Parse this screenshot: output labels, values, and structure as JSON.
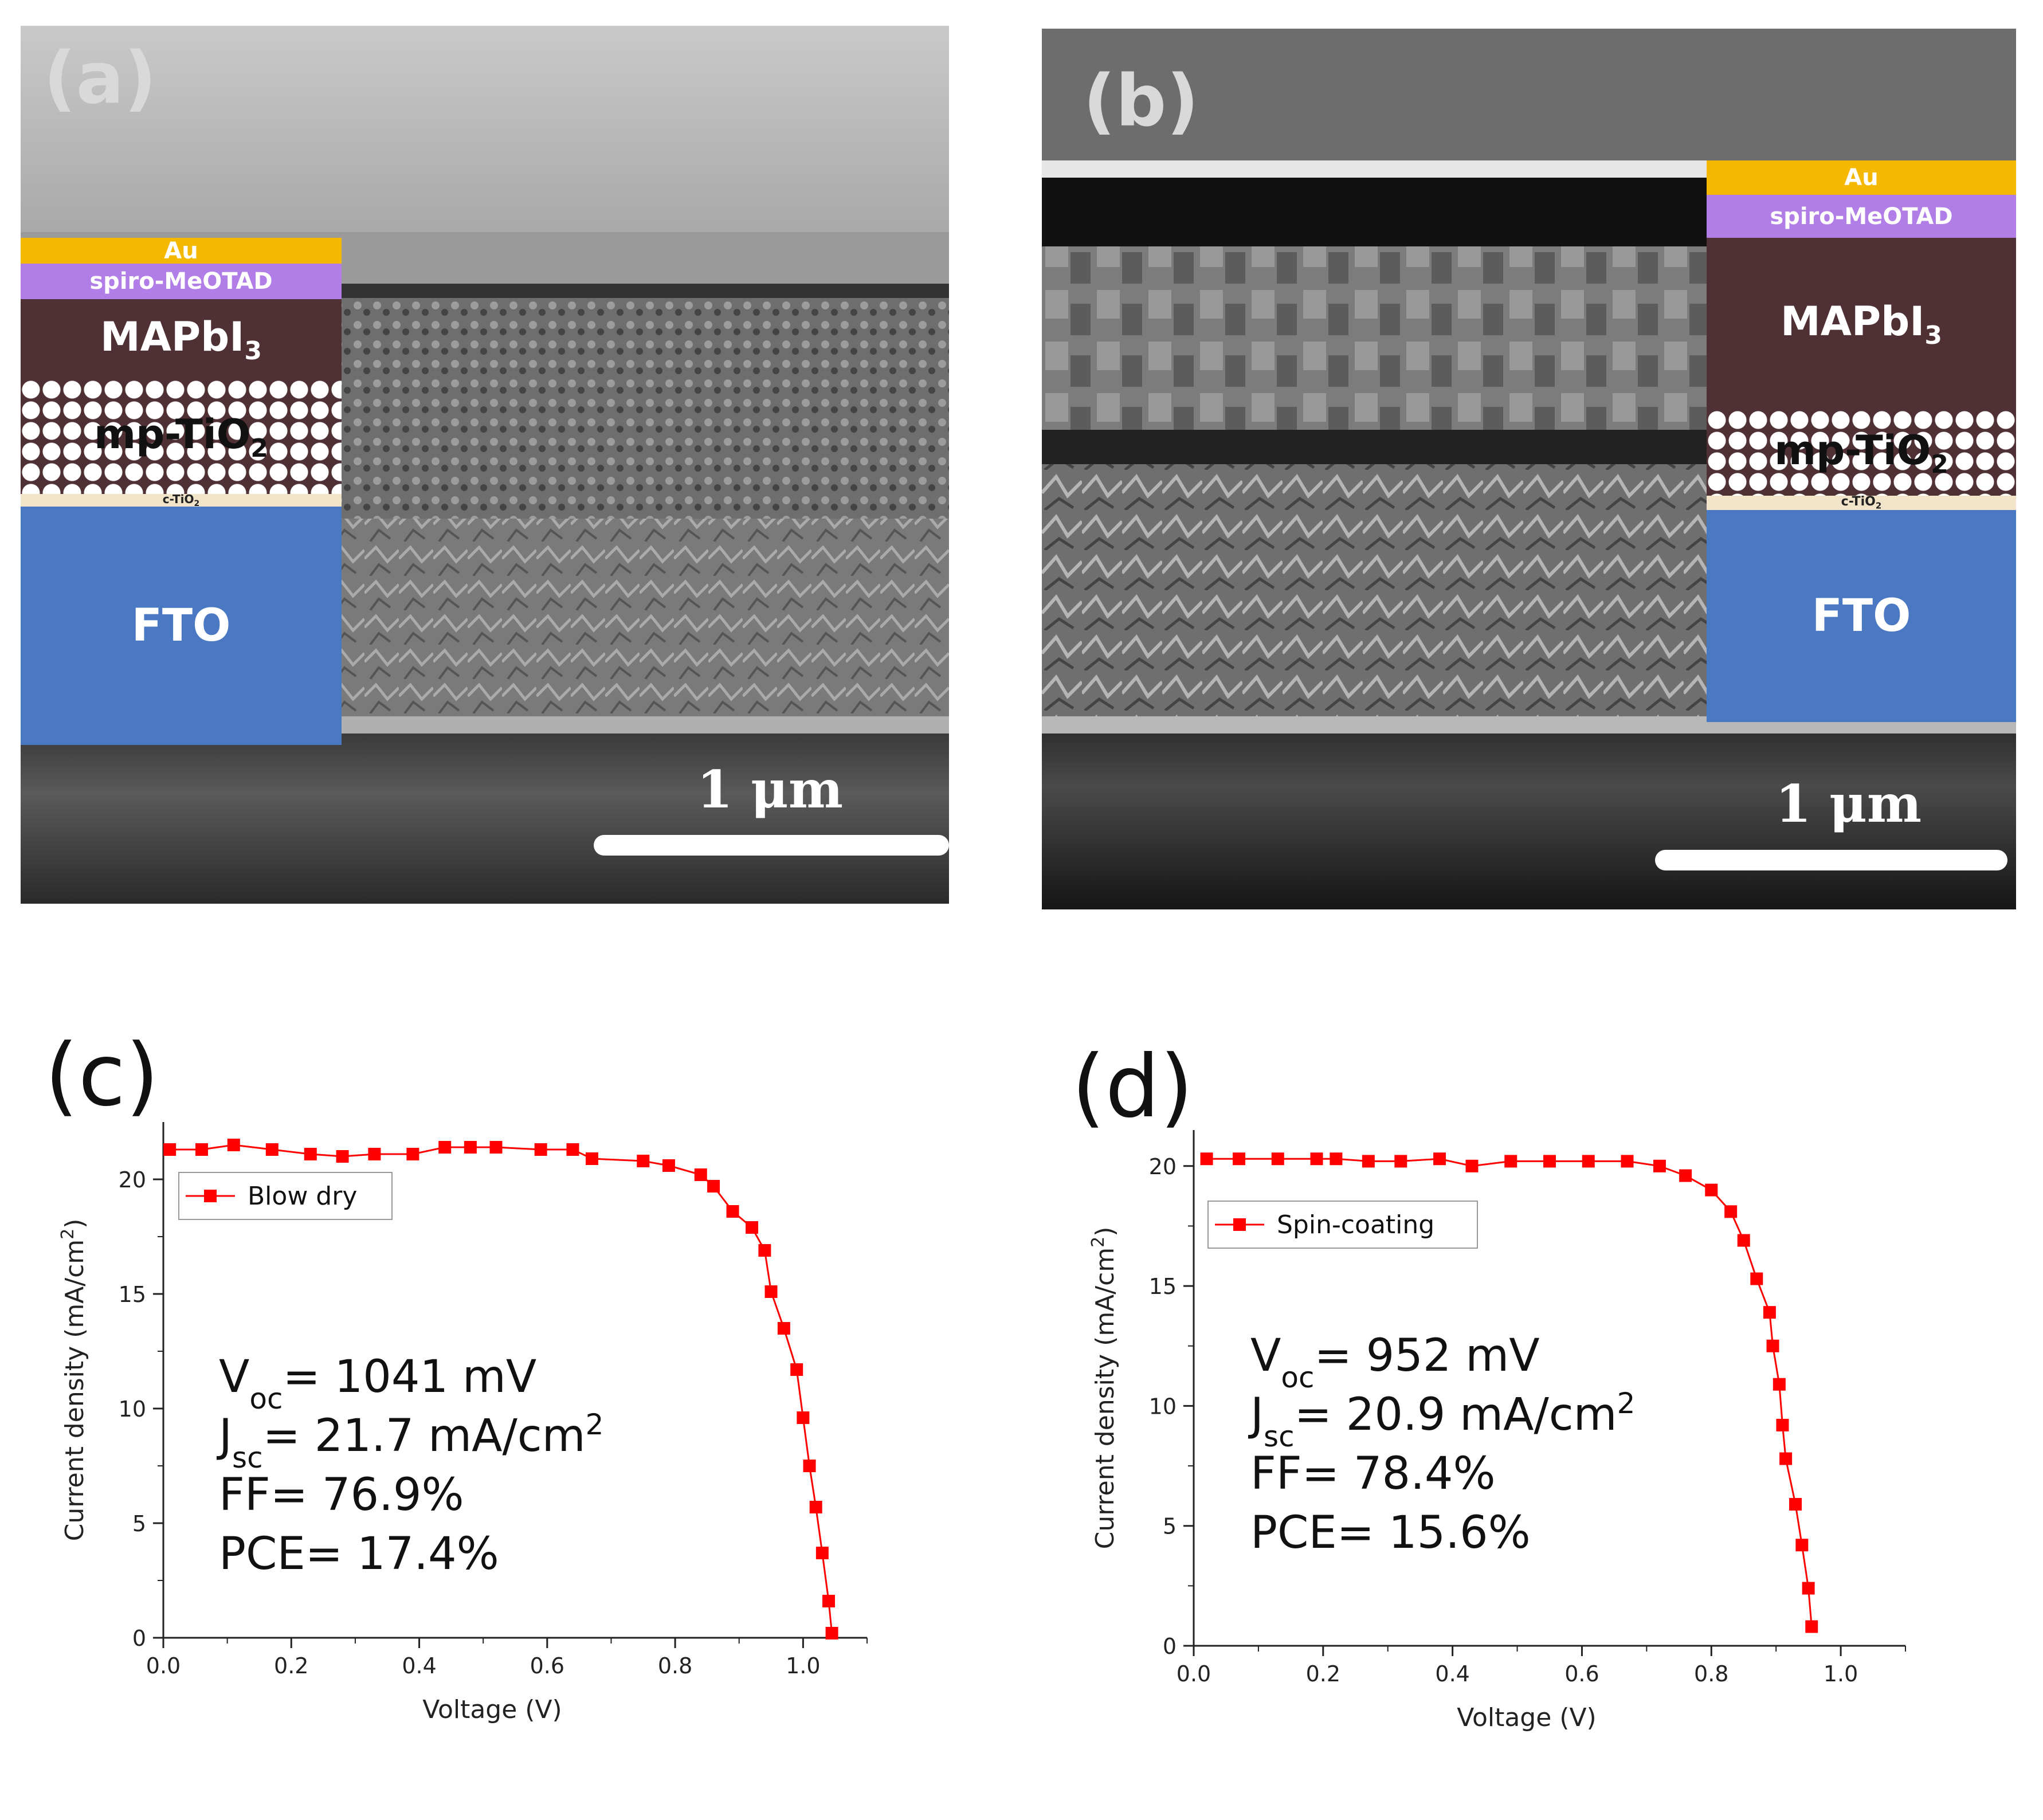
{
  "panels": {
    "a": {
      "label": "(a)",
      "layers": {
        "au": "Au",
        "spiro": "spiro-MeOTAD",
        "mapbi_base": "MAPbI",
        "mapbi_sub": "3",
        "mptio_base": "mp-TiO",
        "mptio_sub": "2",
        "ctio_base": "c-TiO",
        "ctio_sub": "2",
        "fto": "FTO"
      },
      "scale_label": "1 μm"
    },
    "b": {
      "label": "(b)",
      "layers": {
        "au": "Au",
        "spiro": "spiro-MeOTAD",
        "mapbi_base": "MAPbI",
        "mapbi_sub": "3",
        "mptio_base": "mp-TiO",
        "mptio_sub": "2",
        "ctio_base": "c-TiO",
        "ctio_sub": "2",
        "fto": "FTO"
      },
      "scale_label": "1 μm"
    }
  },
  "colors": {
    "au": "#f5b800",
    "spiro": "#b07ee6",
    "mapbi": "#4f3034",
    "fto": "#4a78c2",
    "ctio": "#f2e4c8",
    "series": "#ff0000"
  },
  "chart_data": [
    {
      "type": "line",
      "panel_label": "(c)",
      "xlabel": "Voltage (V)",
      "ylabel_base": "Current density (mA/cm",
      "ylabel_sup": "2",
      "ylabel_end": ")",
      "xlim": [
        0,
        1.1
      ],
      "ylim": [
        0,
        22.5
      ],
      "xticks": [
        0.0,
        0.2,
        0.4,
        0.6,
        0.8,
        1.0
      ],
      "xtick_labels": [
        "0.0",
        "0.2",
        "0.4",
        "0.6",
        "0.8",
        "1.0"
      ],
      "yticks": [
        0,
        5,
        10,
        15,
        20
      ],
      "ytick_labels": [
        "0",
        "5",
        "10",
        "15",
        "20"
      ],
      "legend": "Blow dry",
      "legend_position": "top-left",
      "series": [
        {
          "name": "Blow dry",
          "x": [
            0.01,
            0.06,
            0.11,
            0.17,
            0.23,
            0.28,
            0.33,
            0.39,
            0.44,
            0.48,
            0.52,
            0.59,
            0.64,
            0.67,
            0.75,
            0.79,
            0.84,
            0.86,
            0.89,
            0.92,
            0.94,
            0.95,
            0.97,
            0.99,
            1.0,
            1.01,
            1.02,
            1.03,
            1.04,
            1.045
          ],
          "y": [
            21.3,
            21.3,
            21.5,
            21.3,
            21.1,
            21.0,
            21.1,
            21.1,
            21.4,
            21.4,
            21.4,
            21.3,
            21.3,
            20.9,
            20.8,
            20.6,
            20.2,
            19.7,
            18.6,
            17.9,
            16.9,
            15.1,
            13.5,
            11.7,
            9.6,
            7.5,
            5.7,
            3.7,
            1.6,
            0.2
          ]
        }
      ],
      "annotations": [
        {
          "base": "V",
          "sub": "oc",
          "sup": "",
          "rest": "= 1041 mV",
          "tail": ""
        },
        {
          "base": "J",
          "sub": "sc",
          "sup": "2",
          "rest": "= 21.7 mA/cm",
          "tail": ""
        },
        {
          "base": "FF",
          "sub": "",
          "sup": "",
          "rest": "= 76.9%",
          "tail": ""
        },
        {
          "base": "PCE",
          "sub": "",
          "sup": "",
          "rest": "= 17.4%",
          "tail": ""
        }
      ]
    },
    {
      "type": "line",
      "panel_label": "(d)",
      "xlabel": "Voltage (V)",
      "ylabel_base": "Current density (mA/cm",
      "ylabel_sup": "2",
      "ylabel_end": ")",
      "xlim": [
        0,
        1.1
      ],
      "ylim": [
        0,
        21.5
      ],
      "xticks": [
        0.0,
        0.2,
        0.4,
        0.6,
        0.8,
        1.0
      ],
      "xtick_labels": [
        "0.0",
        "0.2",
        "0.4",
        "0.6",
        "0.8",
        "1.0"
      ],
      "yticks": [
        0,
        5,
        10,
        15,
        20
      ],
      "ytick_labels": [
        "0",
        "5",
        "10",
        "15",
        "20"
      ],
      "legend": "Spin-coating",
      "legend_position": "top-left",
      "series": [
        {
          "name": "Spin-coating",
          "x": [
            0.02,
            0.07,
            0.13,
            0.19,
            0.22,
            0.27,
            0.32,
            0.38,
            0.43,
            0.49,
            0.55,
            0.61,
            0.67,
            0.72,
            0.76,
            0.8,
            0.83,
            0.85,
            0.87,
            0.89,
            0.895,
            0.905,
            0.91,
            0.915,
            0.93,
            0.94,
            0.95,
            0.955
          ],
          "y": [
            20.3,
            20.3,
            20.3,
            20.3,
            20.3,
            20.2,
            20.2,
            20.3,
            20.0,
            20.2,
            20.2,
            20.2,
            20.2,
            20.0,
            19.6,
            19.0,
            18.1,
            16.9,
            15.3,
            13.9,
            12.5,
            10.9,
            9.2,
            7.8,
            5.9,
            4.2,
            2.4,
            0.8
          ]
        }
      ],
      "annotations": [
        {
          "base": "V",
          "sub": "oc",
          "sup": "",
          "rest": "= 952 mV",
          "tail": ""
        },
        {
          "base": "J",
          "sub": "sc",
          "sup": "2",
          "rest": "= 20.9 mA/cm",
          "tail": ""
        },
        {
          "base": "FF",
          "sub": "",
          "sup": "",
          "rest": "= 78.4%",
          "tail": ""
        },
        {
          "base": "PCE",
          "sub": "",
          "sup": "",
          "rest": "= 15.6%",
          "tail": ""
        }
      ]
    }
  ]
}
